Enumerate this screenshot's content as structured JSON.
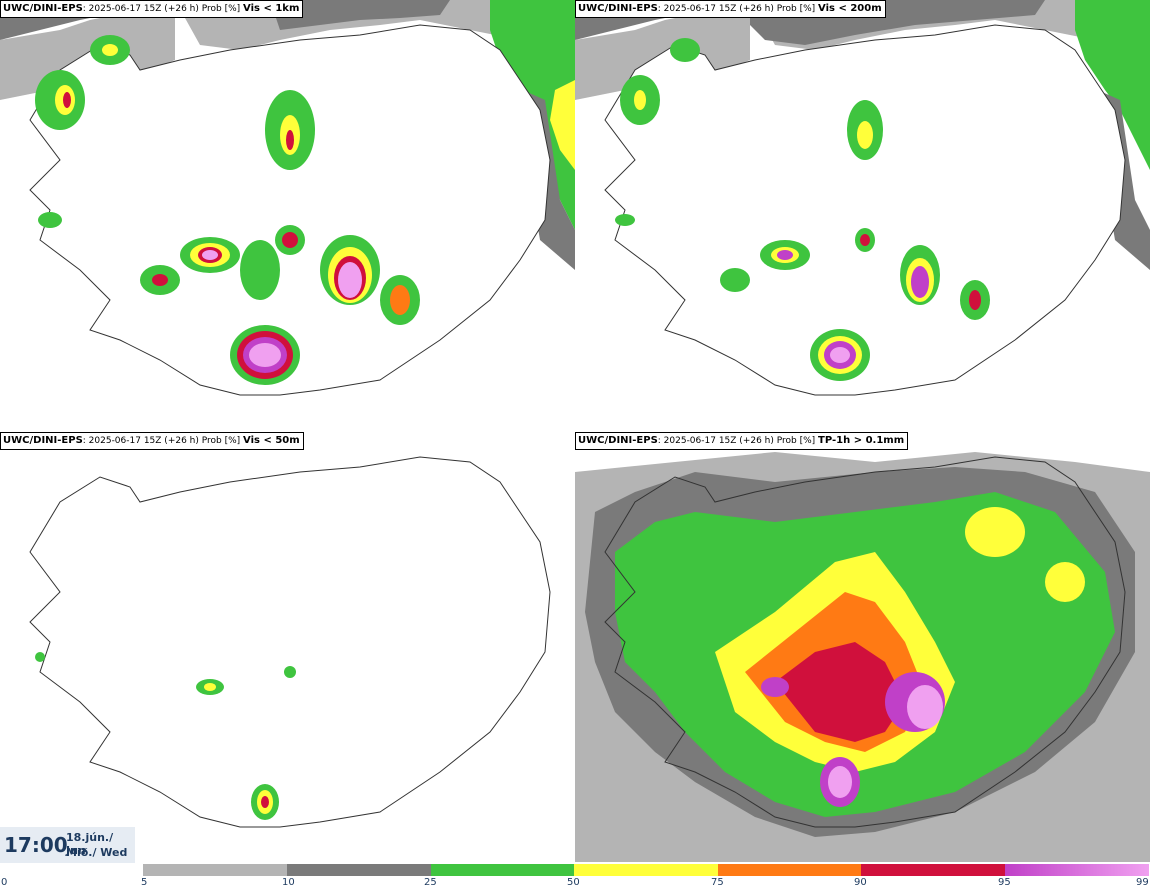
{
  "panels": [
    {
      "model": "UWC/DINI-EPS",
      "run": ": 2025-06-17 15Z (+26 h) Prob [%]",
      "variable": "Vis < 1km"
    },
    {
      "model": "UWC/DINI-EPS",
      "run": ": 2025-06-17 15Z (+26 h) Prob [%]",
      "variable": "Vis < 200m"
    },
    {
      "model": "UWC/DINI-EPS",
      "run": ": 2025-06-17 15Z (+26 h) Prob [%]",
      "variable": "Vis < 50m"
    },
    {
      "model": "UWC/DINI-EPS",
      "run": ": 2025-06-17 15Z (+26 h) Prob [%]",
      "variable": "TP-1h > 0.1mm"
    }
  ],
  "clock": {
    "time": "17:00",
    "date_line1": "18.jún./ Jun",
    "date_line2": "Mið./ Wed"
  },
  "colorbar": {
    "ticks": [
      "0",
      "5",
      "10",
      "25",
      "50",
      "75",
      "90",
      "95",
      "99"
    ],
    "colors": {
      "5-10": "#b4b4b4",
      "10-25": "#7a7a7a",
      "25-50": "#3fc43f",
      "50-75": "#ffff3a",
      "75-90": "#ff7a14",
      "90-95": "#d0103c",
      "95-99": "#c040c8",
      "99": "#f0a0f0"
    }
  }
}
